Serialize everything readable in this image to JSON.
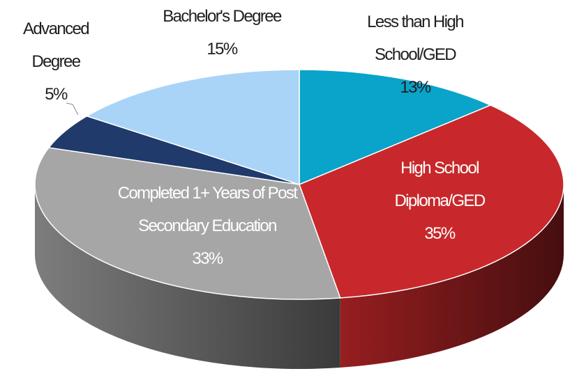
{
  "chart_data": {
    "type": "pie3d",
    "categories": [
      "Less than High School/GED",
      "High School Diploma/GED",
      "Completed 1+ Years of Post Secondary Education",
      "Advanced Degree",
      "Bachelor's Degree"
    ],
    "values": [
      13,
      35,
      33,
      5,
      15
    ],
    "value_labels": [
      "13%",
      "35%",
      "33%",
      "5%",
      "15%"
    ],
    "colors": [
      "#0aa3c9",
      "#c8282b",
      "#a6a6a6",
      "#1f3a6b",
      "#a9d4f7"
    ]
  }
}
